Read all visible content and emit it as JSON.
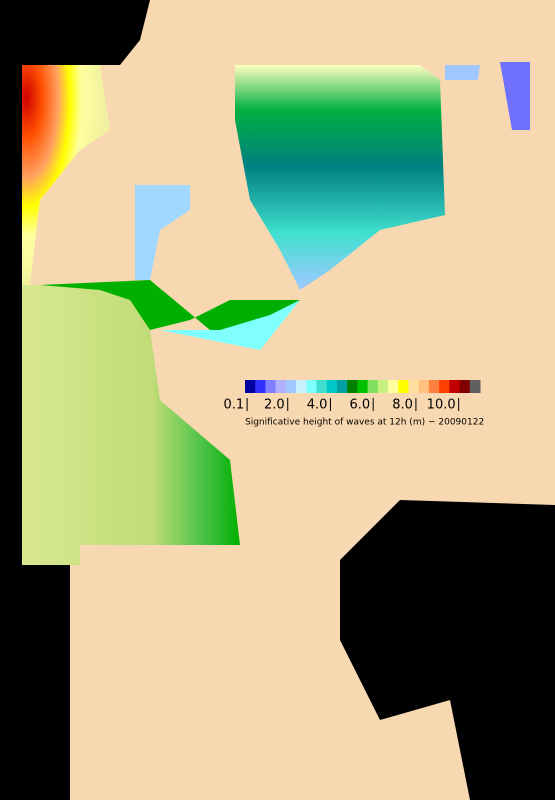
{
  "map": {
    "caption": "Significative height of waves at 12h (m) − 20090122",
    "colorbar": {
      "range": [
        0,
        11
      ],
      "ticks": [
        0.1,
        {
          "value": 2,
          "label": "2.0"
        },
        {
          "value": 4,
          "label": "4.0"
        },
        {
          "value": 6,
          "label": "6.0"
        },
        {
          "value": 8,
          "label": "8.0"
        },
        {
          "value": 10,
          "label": "10.0"
        }
      ],
      "colors": [
        "#0000a0",
        "#3030ff",
        "#8080ff",
        "#b0b0ff",
        "#a0c8ff",
        "#c8f0ff",
        "#80ffff",
        "#40e0d0",
        "#00c8c8",
        "#00a0a0",
        "#008000",
        "#00c000",
        "#80e060",
        "#c8f080",
        "#ffffa0",
        "#ffff00",
        "#ffe0a0",
        "#ffc080",
        "#ff8040",
        "#ff4000",
        "#c00000",
        "#800000",
        "#606060"
      ]
    }
  }
}
